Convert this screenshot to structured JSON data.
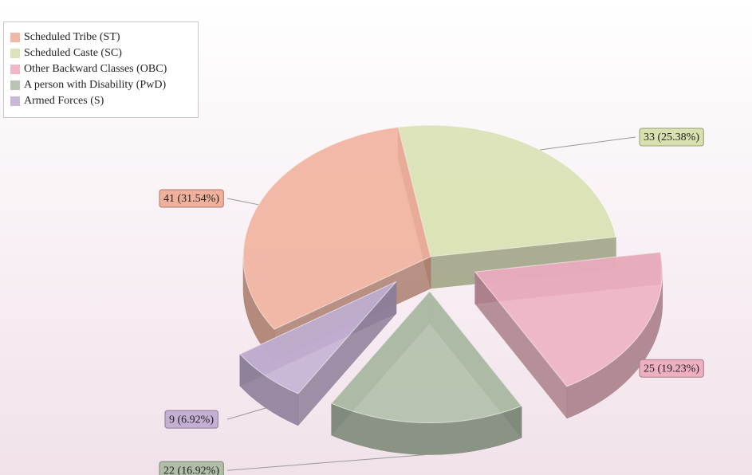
{
  "chart_data": {
    "type": "pie",
    "categories": [
      "Scheduled Tribe (ST)",
      "Scheduled Caste (SC)",
      "Other Backward Classes (OBC)",
      "A person with Disability (PwD)",
      "Armed Forces (S)"
    ],
    "values": [
      41,
      33,
      25,
      22,
      9
    ],
    "value_labels": [
      "41 (31.54%)",
      "33 (25.38%)",
      "25 (19.23%)",
      "22 (16.92%)",
      "9 (6.92%)"
    ],
    "colors": [
      "#f0b09c",
      "#d8e0b0",
      "#eeb0c0",
      "#b0bea8",
      "#c4b0d4"
    ],
    "exploded": [
      false,
      false,
      true,
      true,
      true
    ],
    "legend": "top-left"
  }
}
